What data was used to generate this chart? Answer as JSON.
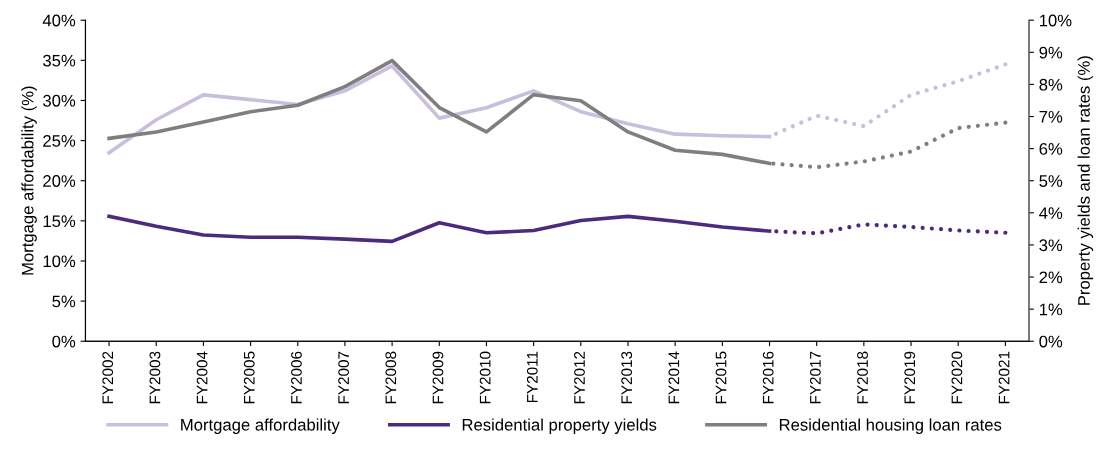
{
  "chart_data": {
    "type": "line",
    "categories": [
      "FY2002",
      "FY2003",
      "FY2004",
      "FY2005",
      "FY2006",
      "FY2007",
      "FY2008",
      "FY2009",
      "FY2010",
      "FY2011",
      "FY2012",
      "FY2013",
      "FY2014",
      "FY2015",
      "FY2016",
      "FY2017",
      "FY2018",
      "FY2019",
      "FY2020",
      "FY2021"
    ],
    "ylabel": "Mortgage affordability (%)",
    "y2label": "Property yields and loan rates (%)",
    "ylim": [
      0,
      40
    ],
    "yticks": [
      {
        "value": 0,
        "label": "0%"
      },
      {
        "value": 5,
        "label": "5%"
      },
      {
        "value": 10,
        "label": "10%"
      },
      {
        "value": 15,
        "label": "15%"
      },
      {
        "value": 20,
        "label": "20%"
      },
      {
        "value": 25,
        "label": "25%"
      },
      {
        "value": 30,
        "label": "30%"
      },
      {
        "value": 35,
        "label": "35%"
      },
      {
        "value": 40,
        "label": "40%"
      }
    ],
    "y2lim": [
      0,
      10
    ],
    "y2ticks": [
      {
        "value": 0,
        "label": "0%"
      },
      {
        "value": 1,
        "label": "1%"
      },
      {
        "value": 2,
        "label": "2%"
      },
      {
        "value": 3,
        "label": "3%"
      },
      {
        "value": 4,
        "label": "4%"
      },
      {
        "value": 5,
        "label": "5%"
      },
      {
        "value": 6,
        "label": "6%"
      },
      {
        "value": 7,
        "label": "7%"
      },
      {
        "value": 8,
        "label": "8%"
      },
      {
        "value": 9,
        "label": "9%"
      },
      {
        "value": 10,
        "label": "10%"
      }
    ],
    "grid": false,
    "legend": "bottom",
    "marker": "none",
    "series": [
      {
        "name": "Mortgage affordability",
        "color": "#c9bedd",
        "line_style": "solid",
        "values": [
          23.5,
          27.6,
          30.7,
          30.1,
          29.5,
          31.2,
          34.3,
          27.8,
          29.1,
          31.2,
          28.6,
          27.1,
          25.8,
          25.6,
          25.5,
          null,
          null,
          null,
          null,
          null
        ]
      },
      {
        "name": "Residential property yields",
        "color": "#4b2a7f",
        "line_style": "solid",
        "axis": "y2",
        "values": [
          3.89,
          3.58,
          3.31,
          3.24,
          3.24,
          3.18,
          3.11,
          3.69,
          3.38,
          3.45,
          3.76,
          3.89,
          3.74,
          3.56,
          3.43,
          null,
          null,
          null,
          null,
          null
        ]
      },
      {
        "name": "Residential housing loan rates",
        "color": "#7f7f7f",
        "line_style": "solid",
        "axis": "y2",
        "values": [
          6.32,
          6.52,
          6.83,
          7.15,
          7.35,
          7.93,
          8.74,
          7.28,
          6.52,
          7.68,
          7.49,
          6.52,
          5.95,
          5.82,
          5.54,
          null,
          null,
          null,
          null,
          null
        ]
      },
      {
        "color": "#c9bedd",
        "line_style": "dotted",
        "values": [
          null,
          null,
          null,
          null,
          null,
          null,
          null,
          null,
          null,
          null,
          null,
          null,
          null,
          null,
          25.5,
          28.1,
          26.8,
          30.7,
          32.4,
          34.5
        ]
      },
      {
        "color": "#4b2a7f",
        "line_style": "dotted",
        "axis": "y2",
        "values": [
          null,
          null,
          null,
          null,
          null,
          null,
          null,
          null,
          null,
          null,
          null,
          null,
          null,
          null,
          3.43,
          3.36,
          3.64,
          3.56,
          3.45,
          3.38
        ]
      },
      {
        "color": "#7f7f7f",
        "line_style": "dotted",
        "axis": "y2",
        "values": [
          null,
          null,
          null,
          null,
          null,
          null,
          null,
          null,
          null,
          null,
          null,
          null,
          null,
          null,
          5.54,
          5.42,
          5.6,
          5.91,
          6.64,
          6.81
        ]
      }
    ]
  }
}
